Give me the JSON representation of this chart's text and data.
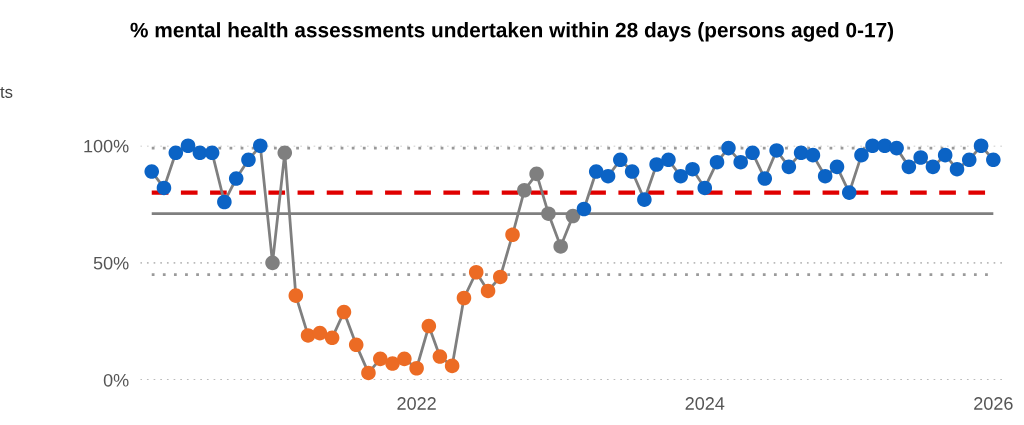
{
  "chart_data": {
    "type": "line",
    "title": "% mental health assessments undertaken within 28 days (persons aged 0-17)",
    "annotations": [
      "ts"
    ],
    "x": [
      "2020-03",
      "2020-04",
      "2020-05",
      "2020-06",
      "2020-07",
      "2020-08",
      "2020-09",
      "2020-10",
      "2020-11",
      "2020-12",
      "2021-01",
      "2021-02",
      "2021-03",
      "2021-04",
      "2021-05",
      "2021-06",
      "2021-07",
      "2021-08",
      "2021-09",
      "2021-10",
      "2021-11",
      "2021-12",
      "2022-01",
      "2022-02",
      "2022-03",
      "2022-04",
      "2022-05",
      "2022-06",
      "2022-07",
      "2022-08",
      "2022-09",
      "2022-10",
      "2022-11",
      "2022-12",
      "2023-01",
      "2023-02",
      "2023-03",
      "2023-04",
      "2023-05",
      "2023-06",
      "2023-07",
      "2023-08",
      "2023-09",
      "2023-10",
      "2023-11",
      "2023-12",
      "2024-01",
      "2024-02",
      "2024-03",
      "2024-04",
      "2024-05",
      "2024-06",
      "2024-07",
      "2024-08",
      "2024-09",
      "2024-10",
      "2024-11",
      "2024-12",
      "2025-01",
      "2025-02",
      "2025-03",
      "2025-04",
      "2025-05",
      "2025-06",
      "2025-07",
      "2025-08",
      "2025-09",
      "2025-10",
      "2025-11",
      "2025-12",
      "2026-01"
    ],
    "series": [
      {
        "color": "#7f7f7f",
        "values": [
          89,
          82,
          97,
          100,
          97,
          97,
          76,
          86,
          94,
          100,
          50,
          97,
          36,
          19,
          20,
          18,
          29,
          15,
          3,
          9,
          7,
          9,
          5,
          23,
          10,
          6,
          35,
          46,
          38,
          44,
          62,
          81,
          88,
          71,
          57,
          70,
          73,
          89,
          87,
          94,
          89,
          77,
          92,
          94,
          87,
          90,
          82,
          93,
          99,
          93,
          97,
          86,
          98,
          91,
          97,
          96,
          87,
          91,
          80,
          96,
          100,
          100,
          99,
          91,
          95,
          91,
          96,
          90,
          94,
          100,
          94
        ],
        "colors": [
          "#0b63c5",
          "#0b63c5",
          "#0b63c5",
          "#0b63c5",
          "#0b63c5",
          "#0b63c5",
          "#0b63c5",
          "#0b63c5",
          "#0b63c5",
          "#0b63c5",
          "#7f7f7f",
          "#7f7f7f",
          "#ec6b24",
          "#ec6b24",
          "#ec6b24",
          "#ec6b24",
          "#ec6b24",
          "#ec6b24",
          "#ec6b24",
          "#ec6b24",
          "#ec6b24",
          "#ec6b24",
          "#ec6b24",
          "#ec6b24",
          "#ec6b24",
          "#ec6b24",
          "#ec6b24",
          "#ec6b24",
          "#ec6b24",
          "#ec6b24",
          "#ec6b24",
          "#7f7f7f",
          "#7f7f7f",
          "#7f7f7f",
          "#7f7f7f",
          "#7f7f7f",
          "#0b63c5",
          "#0b63c5",
          "#0b63c5",
          "#0b63c5",
          "#0b63c5",
          "#0b63c5",
          "#0b63c5",
          "#0b63c5",
          "#0b63c5",
          "#0b63c5",
          "#0b63c5",
          "#0b63c5",
          "#0b63c5",
          "#0b63c5",
          "#0b63c5",
          "#0b63c5",
          "#0b63c5",
          "#0b63c5",
          "#0b63c5",
          "#0b63c5",
          "#0b63c5",
          "#0b63c5",
          "#0b63c5",
          "#0b63c5",
          "#0b63c5",
          "#0b63c5",
          "#0b63c5",
          "#0b63c5",
          "#0b63c5",
          "#0b63c5",
          "#0b63c5",
          "#0b63c5",
          "#0b63c5",
          "#0b63c5",
          "#0b63c5"
        ]
      }
    ],
    "marker": "circle",
    "line_style": "solid",
    "ref_lines": [
      {
        "axis": "y",
        "value": 80,
        "color": "#e00000",
        "line_style": "dashed"
      },
      {
        "axis": "y",
        "value": 71,
        "color": "#7f7f7f",
        "line_style": "solid"
      },
      {
        "axis": "y",
        "value": 99,
        "color": "#9a9a9a",
        "line_style": "dotted"
      },
      {
        "axis": "y",
        "value": 45,
        "color": "#9a9a9a",
        "line_style": "dotted"
      }
    ],
    "xlim": [
      "2020-02",
      "2026-02"
    ],
    "xticks": [
      {
        "value": "2022-01",
        "label": "2022"
      },
      {
        "value": "2024-01",
        "label": "2024"
      },
      {
        "value": "2026-01",
        "label": "2026"
      }
    ],
    "ylim": [
      0,
      100
    ],
    "yticks": [
      {
        "value": 0,
        "label": "0%"
      },
      {
        "value": 50,
        "label": "50%"
      },
      {
        "value": 100,
        "label": "100%"
      }
    ],
    "grid": "y",
    "legend": false
  }
}
